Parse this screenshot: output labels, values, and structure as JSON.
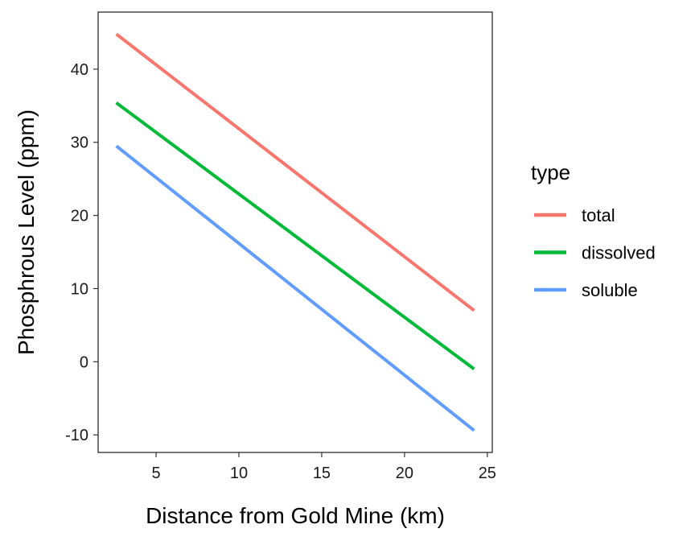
{
  "chart_data": {
    "type": "line",
    "title": "",
    "xlabel": "Distance from Gold Mine (km)",
    "ylabel": "Phosphrous Level (ppm)",
    "xlim": [
      1.5,
      25.3
    ],
    "ylim": [
      -12.4,
      47.8
    ],
    "x_ticks": [
      5,
      10,
      15,
      20,
      25
    ],
    "y_ticks": [
      -10,
      0,
      10,
      20,
      30,
      40
    ],
    "x_tick_labels": [
      "5",
      "10",
      "15",
      "20",
      "25"
    ],
    "y_tick_labels": [
      "-10",
      "0",
      "10",
      "20",
      "30",
      "40"
    ],
    "grid": false,
    "legend": {
      "title": "type",
      "position": "right"
    },
    "series": [
      {
        "name": "total",
        "color": "#F8766D",
        "x": [
          2.6,
          24.2
        ],
        "y": [
          44.8,
          7.0
        ]
      },
      {
        "name": "dissolved",
        "color": "#00BA38",
        "x": [
          2.6,
          24.2
        ],
        "y": [
          35.4,
          -1.0
        ]
      },
      {
        "name": "soluble",
        "color": "#619CFF",
        "x": [
          2.6,
          24.2
        ],
        "y": [
          29.5,
          -9.4
        ]
      }
    ]
  }
}
